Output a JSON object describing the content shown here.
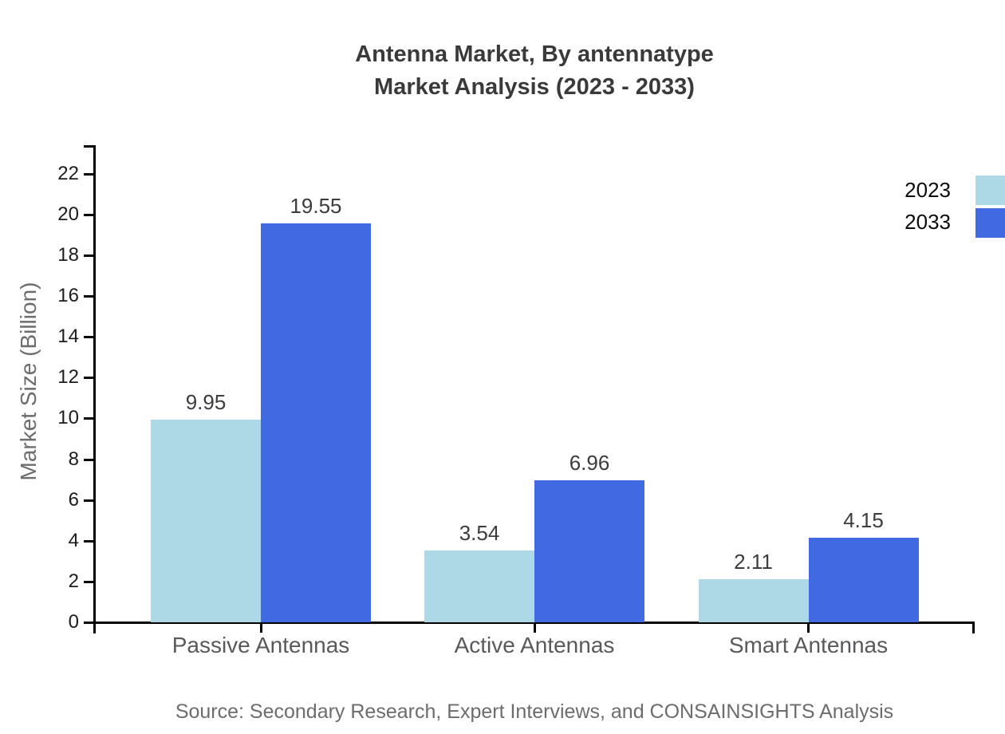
{
  "chart_data": {
    "type": "bar",
    "title_line1": "Antenna Market, By antennatype",
    "title_line2": "Market Analysis (2023 - 2033)",
    "ylabel": "Market Size (Billion)",
    "xlabel": "",
    "categories": [
      "Passive Antennas",
      "Active Antennas",
      "Smart Antennas"
    ],
    "series": [
      {
        "name": "2023",
        "color": "#ADD8E6",
        "values": [
          9.95,
          3.54,
          2.11
        ]
      },
      {
        "name": "2033",
        "color": "#4169E1",
        "values": [
          19.55,
          6.96,
          4.15
        ]
      }
    ],
    "value_label_format": "2dp",
    "yticks": [
      0,
      2,
      4,
      6,
      8,
      10,
      12,
      14,
      16,
      18,
      20,
      22
    ],
    "ylim": [
      0,
      23.4
    ],
    "grid": false,
    "legend_position": "top-right-outside",
    "axis_color": "#000000",
    "source": "Source: Secondary Research, Expert Interviews, and CONSAINSIGHTS Analysis"
  }
}
